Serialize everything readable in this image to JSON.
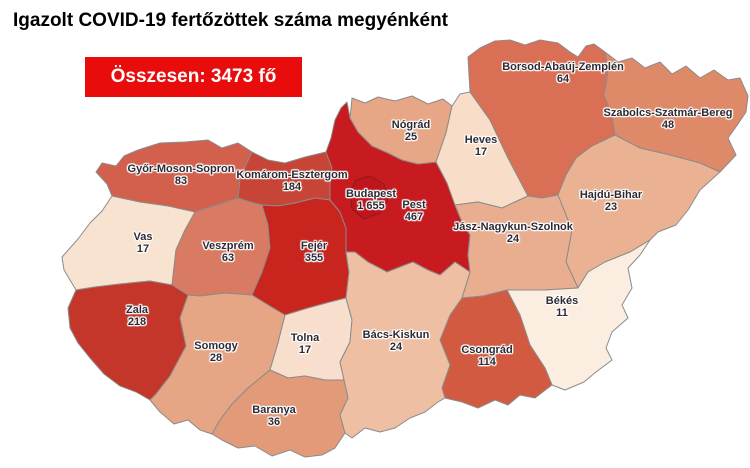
{
  "title": "Igazolt COVID-19 fertőzöttek száma megyénként",
  "total_box": {
    "label": "Összesen: 3473 fő",
    "background": "#e80c0c",
    "text_color": "#ffffff"
  },
  "map": {
    "border_color": "#8b8b8b",
    "label_color": "#2e2a33",
    "counties": [
      {
        "id": "gyor-moson-sopron",
        "name": "Győr-Moson-Sopron",
        "value": "83",
        "color": "#d2604c"
      },
      {
        "id": "komarom-esztergom",
        "name": "Komárom-Esztergom",
        "value": "184",
        "color": "#c64536"
      },
      {
        "id": "vas",
        "name": "Vas",
        "value": "17",
        "color": "#f8e3d1"
      },
      {
        "id": "veszprem",
        "name": "Veszprém",
        "value": "63",
        "color": "#d97a62"
      },
      {
        "id": "zala",
        "name": "Zala",
        "value": "218",
        "color": "#c5362a"
      },
      {
        "id": "somogy",
        "name": "Somogy",
        "value": "28",
        "color": "#e6a585"
      },
      {
        "id": "fejer",
        "name": "Fejér",
        "value": "355",
        "color": "#c8251f"
      },
      {
        "id": "tolna",
        "name": "Tolna",
        "value": "17",
        "color": "#f8dfcd"
      },
      {
        "id": "baranya",
        "name": "Baranya",
        "value": "36",
        "color": "#e29a78"
      },
      {
        "id": "pest",
        "name": "Pest",
        "value": "467",
        "color": "#c71b20"
      },
      {
        "id": "nograd",
        "name": "Nógrád",
        "value": "25",
        "color": "#e7a686"
      },
      {
        "id": "heves",
        "name": "Heves",
        "value": "17",
        "color": "#f8ddc9"
      },
      {
        "id": "borsod-abauj-zemplen",
        "name": "Borsod-Abaúj-Zemplén",
        "value": "64",
        "color": "#d96f54"
      },
      {
        "id": "szabolcs-szatmar-bereg",
        "name": "Szabolcs-Szatmár-Bereg",
        "value": "48",
        "color": "#de8a69"
      },
      {
        "id": "hajdu-bihar",
        "name": "Hajdú-Bihar",
        "value": "23",
        "color": "#eab293"
      },
      {
        "id": "jasz-nagykun-szolnok",
        "name": "Jász-Nagykun-Szolnok",
        "value": "24",
        "color": "#e9ae90"
      },
      {
        "id": "bekes",
        "name": "Békés",
        "value": "11",
        "color": "#fbeee0"
      },
      {
        "id": "csongrad",
        "name": "Csongrád",
        "value": "114",
        "color": "#d15a41"
      },
      {
        "id": "bacs-kiskun",
        "name": "Bács-Kiskun",
        "value": "24",
        "color": "#eebfa2"
      },
      {
        "id": "budapest",
        "name": "Budapest",
        "value": "1 655",
        "color": "#c0151c"
      }
    ]
  },
  "chart_data": {
    "type": "heatmap",
    "title": "Igazolt COVID-19 fertőzöttek száma megyénként",
    "annotations": [
      "Összesen: 3473 fő"
    ],
    "categories": [
      "Budapest",
      "Pest",
      "Fejér",
      "Zala",
      "Komárom-Esztergom",
      "Csongrád",
      "Győr-Moson-Sopron",
      "Borsod-Abaúj-Zemplén",
      "Veszprém",
      "Szabolcs-Szatmár-Bereg",
      "Baranya",
      "Somogy",
      "Nógrád",
      "Jász-Nagykun-Szolnok",
      "Bács-Kiskun",
      "Hajdú-Bihar",
      "Heves",
      "Vas",
      "Tolna",
      "Békés"
    ],
    "values": [
      1655,
      467,
      355,
      218,
      184,
      114,
      83,
      64,
      63,
      48,
      36,
      28,
      25,
      24,
      24,
      23,
      17,
      17,
      17,
      11
    ],
    "total": 3473,
    "legend_position": "none",
    "grid": false
  }
}
